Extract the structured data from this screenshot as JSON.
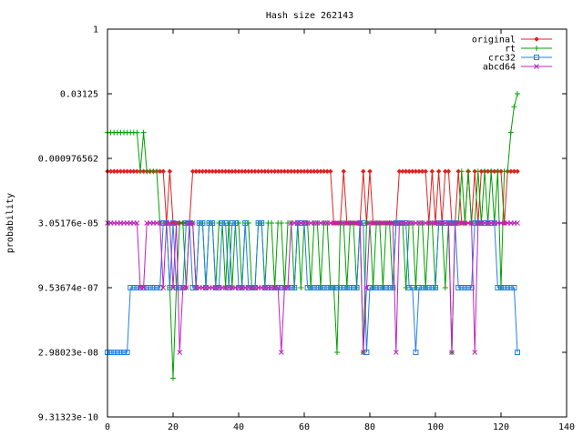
{
  "chart_data": {
    "type": "line",
    "title": "Hash size 262143",
    "xlabel": "",
    "ylabel": "probability",
    "y_scale": "log2",
    "xlim": [
      0,
      140
    ],
    "ylim_log2": [
      -30,
      0
    ],
    "x_ticks": [
      0,
      20,
      40,
      60,
      80,
      100,
      120,
      140
    ],
    "y_ticks": [
      {
        "log2": 0,
        "label": "1"
      },
      {
        "log2": -5,
        "label": "0.03125"
      },
      {
        "log2": -10,
        "label": "0.000976562"
      },
      {
        "log2": -15,
        "label": "3.05176e-05"
      },
      {
        "log2": -20,
        "label": "9.53674e-07"
      },
      {
        "log2": -25,
        "label": "2.98023e-08"
      },
      {
        "log2": -30,
        "label": "9.31323e-10"
      }
    ],
    "grid": false,
    "legend_position": "top-right",
    "series": [
      {
        "name": "original",
        "color": "#e02020",
        "marker": "diamond",
        "x": [
          0,
          1,
          2,
          3,
          4,
          5,
          6,
          7,
          8,
          9,
          10,
          11,
          12,
          13,
          14,
          15,
          16,
          17,
          18,
          19,
          20,
          21,
          22,
          23,
          24,
          25,
          26,
          27,
          28,
          29,
          30,
          31,
          32,
          33,
          34,
          35,
          36,
          37,
          38,
          39,
          40,
          41,
          42,
          43,
          44,
          45,
          46,
          47,
          48,
          49,
          50,
          51,
          52,
          53,
          54,
          55,
          56,
          57,
          58,
          59,
          60,
          61,
          62,
          63,
          64,
          65,
          66,
          67,
          68,
          69,
          70,
          71,
          72,
          73,
          74,
          75,
          76,
          77,
          78,
          79,
          80,
          81,
          82,
          83,
          84,
          85,
          86,
          87,
          88,
          89,
          90,
          91,
          92,
          93,
          94,
          95,
          96,
          97,
          98,
          99,
          100,
          101,
          102,
          103,
          104,
          105,
          106,
          107,
          108,
          109,
          110,
          111,
          112,
          113,
          114,
          115,
          116,
          117,
          118,
          119,
          120,
          121,
          122,
          123,
          124,
          125
        ],
        "log2_y": [
          -11,
          -11,
          -11,
          -11,
          -11,
          -11,
          -11,
          -11,
          -11,
          -11,
          -11,
          -11,
          -11,
          -11,
          -11,
          -11,
          -11,
          -11,
          -15,
          -11,
          -15,
          -15,
          -15,
          -15,
          -15,
          -15,
          -11,
          -11,
          -11,
          -11,
          -11,
          -11,
          -11,
          -11,
          -11,
          -11,
          -11,
          -11,
          -11,
          -11,
          -11,
          -11,
          -11,
          -11,
          -11,
          -11,
          -11,
          -11,
          -11,
          -11,
          -11,
          -11,
          -11,
          -11,
          -11,
          -11,
          -11,
          -11,
          -11,
          -11,
          -11,
          -11,
          -11,
          -11,
          -11,
          -11,
          -11,
          -11,
          -11,
          -15,
          -15,
          -15,
          -11,
          -15,
          -15,
          -15,
          -15,
          -15,
          -11,
          -15,
          -11,
          -15,
          -15,
          -15,
          -15,
          -15,
          -15,
          -15,
          -15,
          -11,
          -11,
          -11,
          -11,
          -11,
          -11,
          -11,
          -11,
          -11,
          -15,
          -11,
          -15,
          -11,
          -15,
          -11,
          -11,
          -15,
          -15,
          -11,
          -15,
          -15,
          -11,
          -15,
          -11,
          -15,
          -11,
          -11,
          -11,
          -11,
          -11,
          -11,
          -11,
          -15,
          -11,
          -11,
          -11,
          -11
        ]
      },
      {
        "name": "rt",
        "color": "#00a000",
        "marker": "plus",
        "x": [
          0,
          1,
          2,
          3,
          4,
          5,
          6,
          7,
          8,
          9,
          10,
          11,
          12,
          13,
          14,
          15,
          16,
          17,
          18,
          19,
          20,
          21,
          22,
          23,
          24,
          25,
          26,
          27,
          28,
          29,
          30,
          31,
          32,
          33,
          34,
          35,
          36,
          37,
          38,
          39,
          40,
          41,
          42,
          43,
          44,
          45,
          46,
          47,
          48,
          49,
          50,
          51,
          52,
          53,
          54,
          55,
          56,
          57,
          58,
          59,
          60,
          61,
          62,
          63,
          64,
          65,
          66,
          67,
          68,
          69,
          70,
          71,
          72,
          73,
          74,
          75,
          76,
          77,
          78,
          79,
          80,
          81,
          82,
          83,
          84,
          85,
          86,
          87,
          88,
          89,
          90,
          91,
          92,
          93,
          94,
          95,
          96,
          97,
          98,
          99,
          100,
          101,
          102,
          103,
          104,
          105,
          106,
          107,
          108,
          109,
          110,
          111,
          112,
          113,
          114,
          115,
          116,
          117,
          118,
          119,
          120,
          121,
          122,
          123,
          124,
          125
        ],
        "log2_y": [
          -8,
          -8,
          -8,
          -8,
          -8,
          -8,
          -8,
          -8,
          -8,
          -8,
          -11,
          -8,
          -11,
          -11,
          -11,
          -11,
          -15,
          -15,
          -15,
          -20,
          -27,
          -20,
          -15,
          -15,
          -20,
          -15,
          -15,
          -20,
          -15,
          -15,
          -20,
          -15,
          -15,
          -20,
          -15,
          -15,
          -20,
          -15,
          -20,
          -15,
          -15,
          -20,
          -15,
          -15,
          -20,
          -20,
          -15,
          -15,
          -20,
          -15,
          -15,
          -20,
          -15,
          -15,
          -20,
          -15,
          -15,
          -20,
          -15,
          -20,
          -15,
          -15,
          -20,
          -15,
          -15,
          -20,
          -15,
          -15,
          -20,
          -20,
          -25,
          -15,
          -15,
          -20,
          -15,
          -15,
          -20,
          -15,
          -25,
          -15,
          -15,
          -20,
          -15,
          -15,
          -20,
          -15,
          -15,
          -20,
          -15,
          -15,
          -15,
          -20,
          -15,
          -15,
          -20,
          -15,
          -15,
          -20,
          -15,
          -15,
          -20,
          -15,
          -15,
          -20,
          -15,
          -25,
          -15,
          -15,
          -11,
          -15,
          -11,
          -15,
          -15,
          -11,
          -15,
          -11,
          -15,
          -11,
          -15,
          -11,
          -20,
          -11,
          -11,
          -8,
          -6,
          -5
        ]
      },
      {
        "name": "crc32",
        "color": "#2080e0",
        "marker": "square",
        "x": [
          0,
          1,
          2,
          3,
          4,
          5,
          6,
          7,
          8,
          9,
          10,
          11,
          12,
          13,
          14,
          15,
          16,
          17,
          18,
          19,
          20,
          21,
          22,
          23,
          24,
          25,
          26,
          27,
          28,
          29,
          30,
          31,
          32,
          33,
          34,
          35,
          36,
          37,
          38,
          39,
          40,
          41,
          42,
          43,
          44,
          45,
          46,
          47,
          48,
          49,
          50,
          51,
          52,
          53,
          54,
          55,
          56,
          57,
          58,
          59,
          60,
          61,
          62,
          63,
          64,
          65,
          66,
          67,
          68,
          69,
          70,
          71,
          72,
          73,
          74,
          75,
          76,
          77,
          78,
          79,
          80,
          81,
          82,
          83,
          84,
          85,
          86,
          87,
          88,
          89,
          90,
          91,
          92,
          93,
          94,
          95,
          96,
          97,
          98,
          99,
          100,
          101,
          102,
          103,
          104,
          105,
          106,
          107,
          108,
          109,
          110,
          111,
          112,
          113,
          114,
          115,
          116,
          117,
          118,
          119,
          120,
          121,
          122,
          123,
          124,
          125
        ],
        "log2_y": [
          -25,
          -25,
          -25,
          -25,
          -25,
          -25,
          -25,
          -20,
          -20,
          -20,
          -20,
          -20,
          -20,
          -20,
          -20,
          -20,
          -20,
          -15,
          -15,
          -20,
          -15,
          -20,
          -20,
          -20,
          -15,
          -15,
          -20,
          -20,
          -15,
          -15,
          -20,
          -15,
          -15,
          -20,
          -20,
          -15,
          -15,
          -20,
          -15,
          -15,
          -20,
          -20,
          -15,
          -20,
          -20,
          -20,
          -15,
          -15,
          -20,
          -20,
          -20,
          -20,
          -20,
          -20,
          -20,
          -20,
          -20,
          -20,
          -15,
          -15,
          -15,
          -20,
          -20,
          -20,
          -20,
          -20,
          -20,
          -20,
          -20,
          -20,
          -20,
          -20,
          -20,
          -20,
          -20,
          -20,
          -20,
          -15,
          -15,
          -25,
          -20,
          -20,
          -20,
          -20,
          -20,
          -20,
          -20,
          -20,
          -15,
          -15,
          -15,
          -15,
          -20,
          -20,
          -25,
          -20,
          -20,
          -20,
          -20,
          -20,
          -20,
          -15,
          -15,
          -15,
          -15,
          -15,
          -15,
          -20,
          -20,
          -20,
          -20,
          -20,
          -15,
          -15,
          -15,
          -15,
          -15,
          -15,
          -15,
          -20,
          -20,
          -20,
          -20,
          -20,
          -20,
          -25
        ]
      },
      {
        "name": "abcd64",
        "color": "#c020c0",
        "marker": "cross",
        "x": [
          0,
          1,
          2,
          3,
          4,
          5,
          6,
          7,
          8,
          9,
          10,
          11,
          12,
          13,
          14,
          15,
          16,
          17,
          18,
          19,
          20,
          21,
          22,
          23,
          24,
          25,
          26,
          27,
          28,
          29,
          30,
          31,
          32,
          33,
          34,
          35,
          36,
          37,
          38,
          39,
          40,
          41,
          42,
          43,
          44,
          45,
          46,
          47,
          48,
          49,
          50,
          51,
          52,
          53,
          54,
          55,
          56,
          57,
          58,
          59,
          60,
          61,
          62,
          63,
          64,
          65,
          66,
          67,
          68,
          69,
          70,
          71,
          72,
          73,
          74,
          75,
          76,
          77,
          78,
          79,
          80,
          81,
          82,
          83,
          84,
          85,
          86,
          87,
          88,
          89,
          90,
          91,
          92,
          93,
          94,
          95,
          96,
          97,
          98,
          99,
          100,
          101,
          102,
          103,
          104,
          105,
          106,
          107,
          108,
          109,
          110,
          111,
          112,
          113,
          114,
          115,
          116,
          117,
          118,
          119,
          120,
          121,
          122,
          123,
          124,
          125
        ],
        "log2_y": [
          -15,
          -15,
          -15,
          -15,
          -15,
          -15,
          -15,
          -15,
          -15,
          -15,
          -20,
          -20,
          -15,
          -15,
          -15,
          -15,
          -15,
          -20,
          -15,
          -15,
          -20,
          -15,
          -25,
          -20,
          -20,
          -15,
          -15,
          -20,
          -20,
          -20,
          -20,
          -20,
          -20,
          -20,
          -20,
          -20,
          -20,
          -20,
          -20,
          -20,
          -20,
          -20,
          -20,
          -20,
          -20,
          -20,
          -20,
          -20,
          -20,
          -20,
          -20,
          -20,
          -20,
          -25,
          -20,
          -20,
          -15,
          -15,
          -15,
          -15,
          -15,
          -15,
          -15,
          -15,
          -15,
          -15,
          -15,
          -15,
          -15,
          -15,
          -15,
          -15,
          -15,
          -15,
          -15,
          -15,
          -15,
          -15,
          -25,
          -20,
          -15,
          -15,
          -15,
          -15,
          -15,
          -15,
          -15,
          -15,
          -25,
          -15,
          -15,
          -15,
          -15,
          -15,
          -15,
          -15,
          -15,
          -15,
          -15,
          -15,
          -15,
          -15,
          -15,
          -15,
          -15,
          -25,
          -15,
          -15,
          -15,
          -15,
          -15,
          -15,
          -25,
          -15,
          -15,
          -15,
          -15,
          -15,
          -15,
          -15,
          -15,
          -15,
          -15,
          -15,
          -15,
          -15
        ]
      }
    ]
  }
}
